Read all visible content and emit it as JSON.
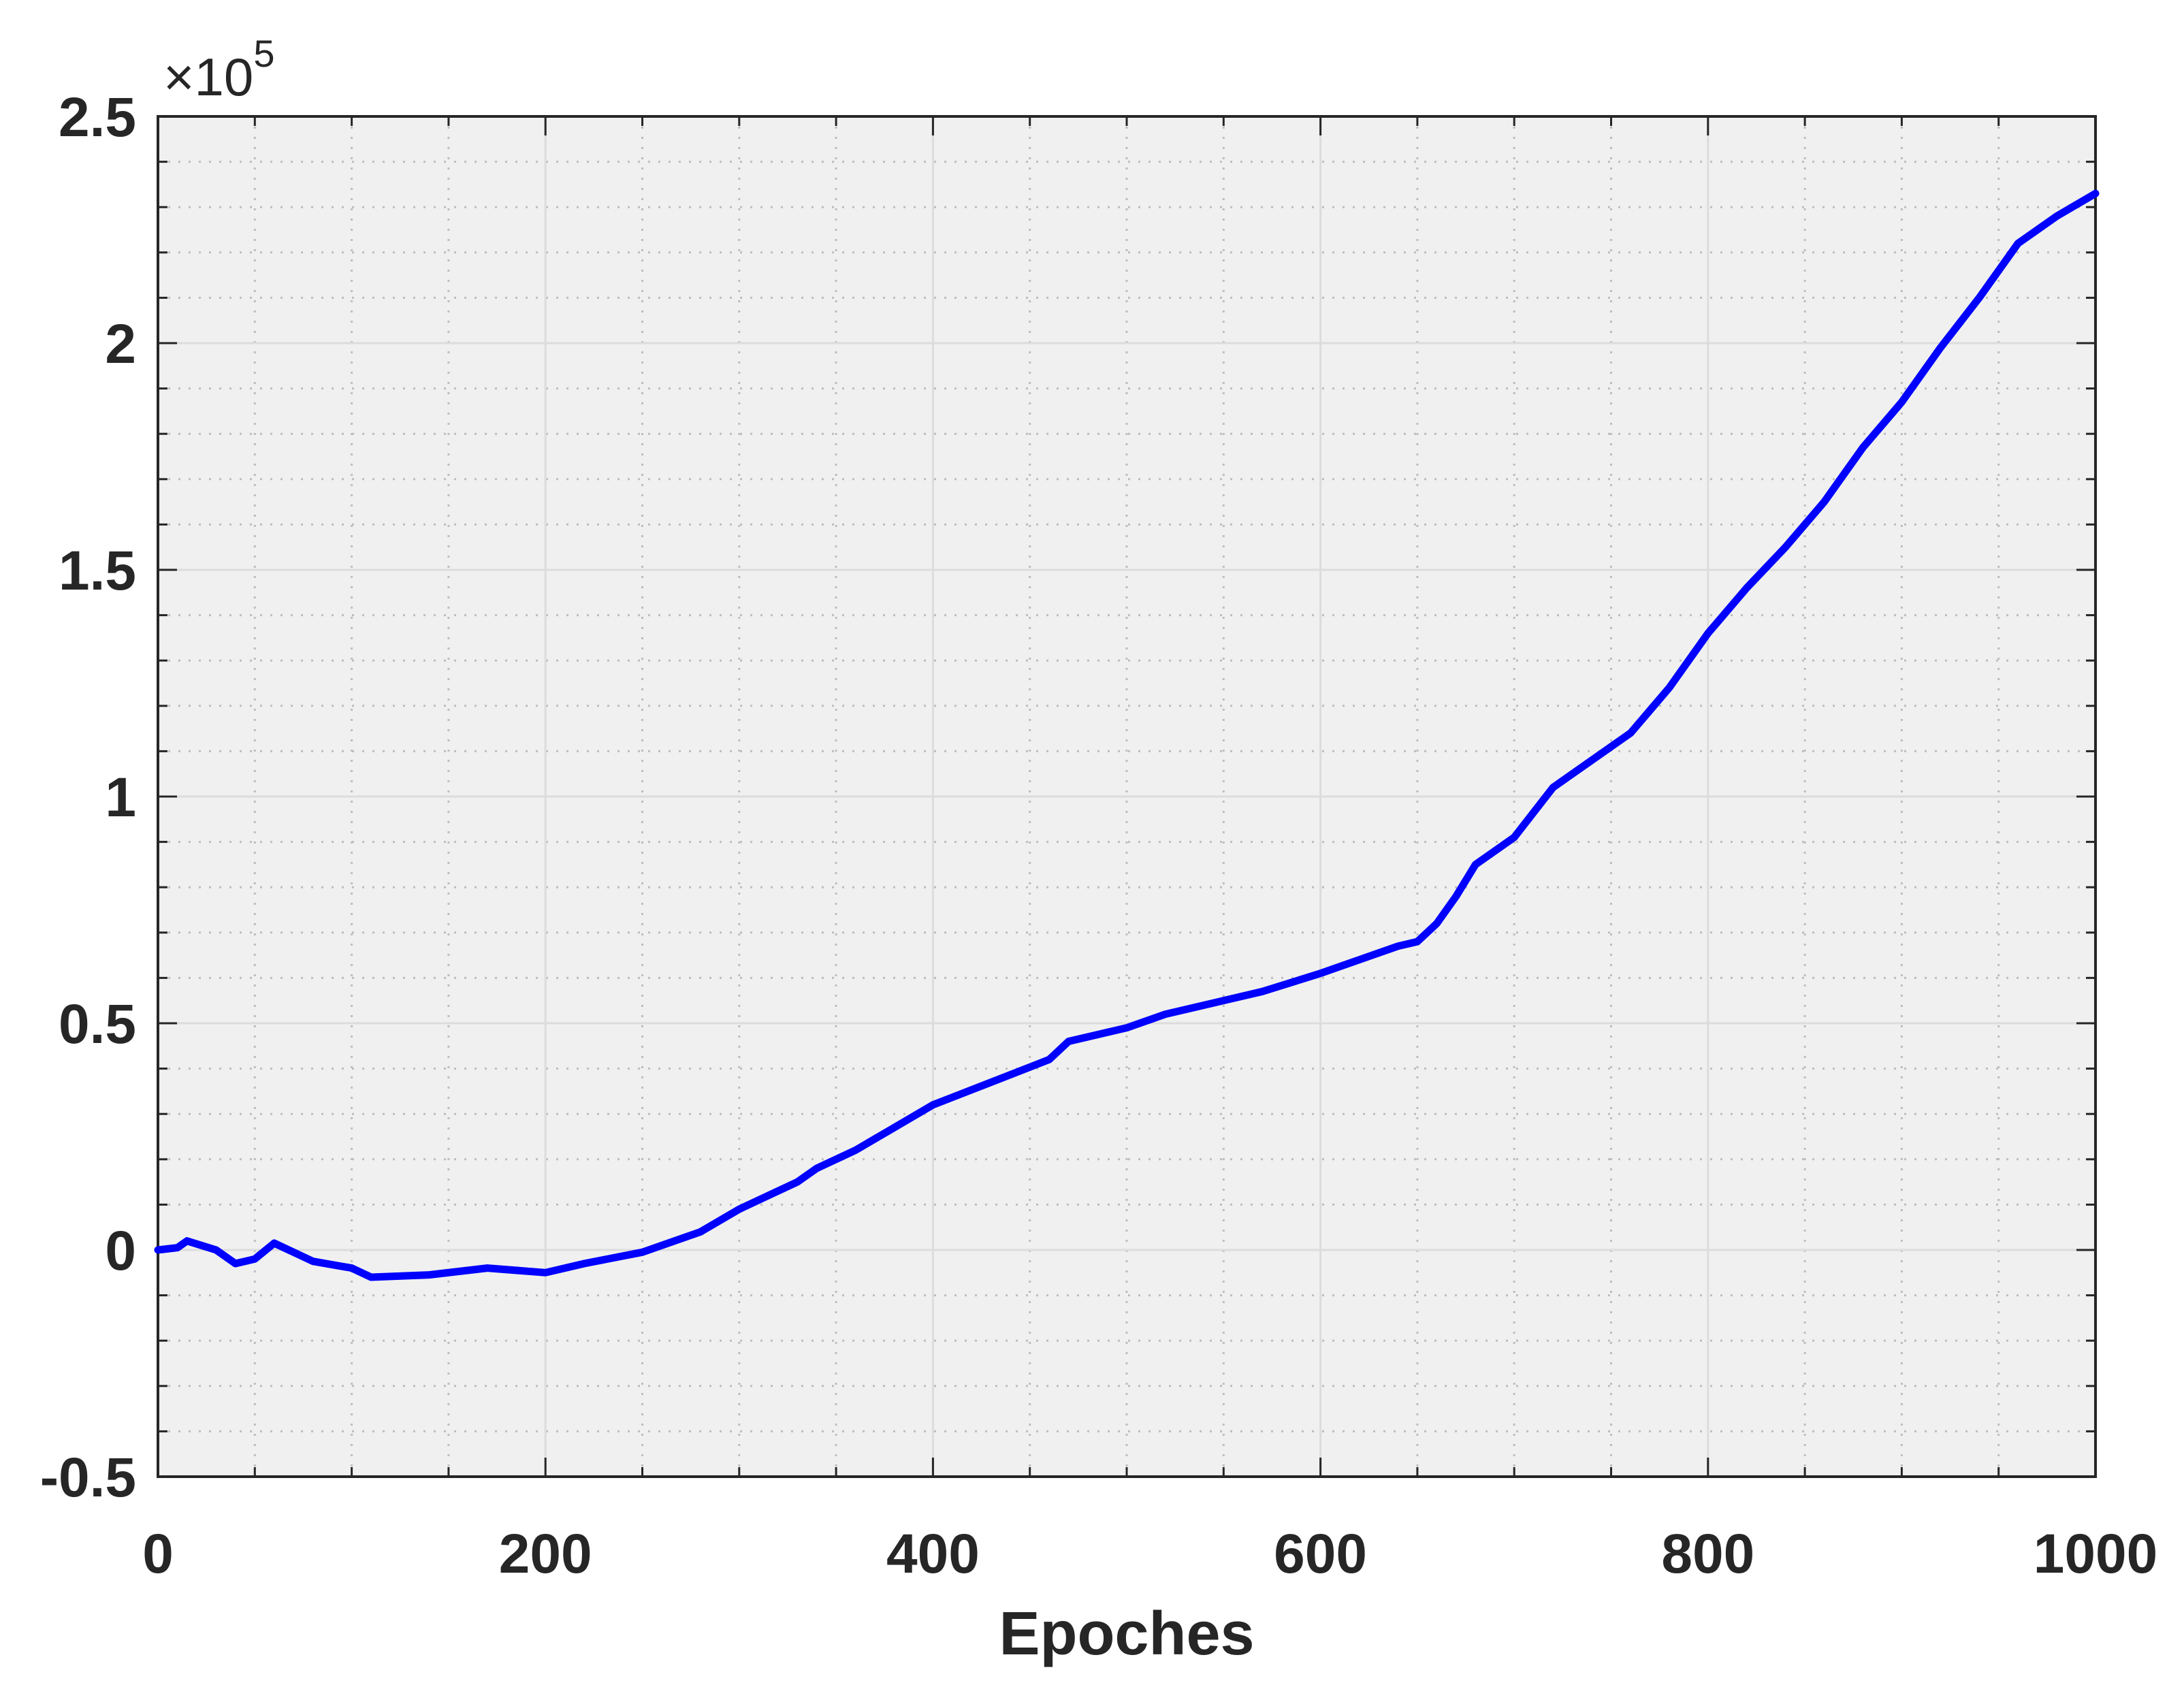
{
  "chart_data": {
    "type": "line",
    "x_label": "Epoches",
    "y_multiplier": "×10",
    "y_multiplier_power": "5",
    "xlim": [
      0,
      1000
    ],
    "xticks": [
      0,
      200,
      400,
      600,
      800,
      1000
    ],
    "xminorticks": [
      50,
      100,
      150,
      250,
      300,
      350,
      450,
      500,
      550,
      650,
      700,
      750,
      850,
      900,
      950
    ],
    "ylim": [
      -0.5,
      2.5
    ],
    "yticks": [
      -0.5,
      0,
      0.5,
      1,
      1.5,
      2,
      2.5
    ],
    "yminorticks": [
      -0.4,
      -0.3,
      -0.2,
      -0.1,
      0.1,
      0.2,
      0.3,
      0.4,
      0.6,
      0.7,
      0.8,
      0.9,
      1.1,
      1.2,
      1.3,
      1.4,
      1.6,
      1.7,
      1.8,
      1.9,
      2.1,
      2.2,
      2.3,
      2.4
    ],
    "grid": true,
    "background": "#f0f0f0",
    "series": [
      {
        "color": "#0000ff",
        "x": [
          0,
          10,
          15,
          30,
          40,
          50,
          60,
          80,
          100,
          110,
          140,
          170,
          200,
          220,
          250,
          280,
          300,
          330,
          340,
          360,
          380,
          400,
          430,
          460,
          470,
          500,
          520,
          550,
          570,
          600,
          640,
          650,
          660,
          670,
          680,
          700,
          720,
          740,
          760,
          780,
          800,
          820,
          840,
          860,
          880,
          900,
          920,
          940,
          960,
          980,
          1000
        ],
        "values": [
          0,
          0.005,
          0.02,
          0.0,
          -0.03,
          -0.02,
          0.015,
          -0.025,
          -0.04,
          -0.06,
          -0.055,
          -0.04,
          -0.05,
          -0.03,
          -0.005,
          0.04,
          0.09,
          0.15,
          0.18,
          0.22,
          0.27,
          0.32,
          0.37,
          0.42,
          0.46,
          0.49,
          0.52,
          0.55,
          0.57,
          0.61,
          0.67,
          0.68,
          0.72,
          0.78,
          0.85,
          0.91,
          1.02,
          1.08,
          1.14,
          1.24,
          1.36,
          1.46,
          1.55,
          1.65,
          1.77,
          1.87,
          1.99,
          2.1,
          2.22,
          2.28,
          2.33
        ]
      }
    ]
  }
}
